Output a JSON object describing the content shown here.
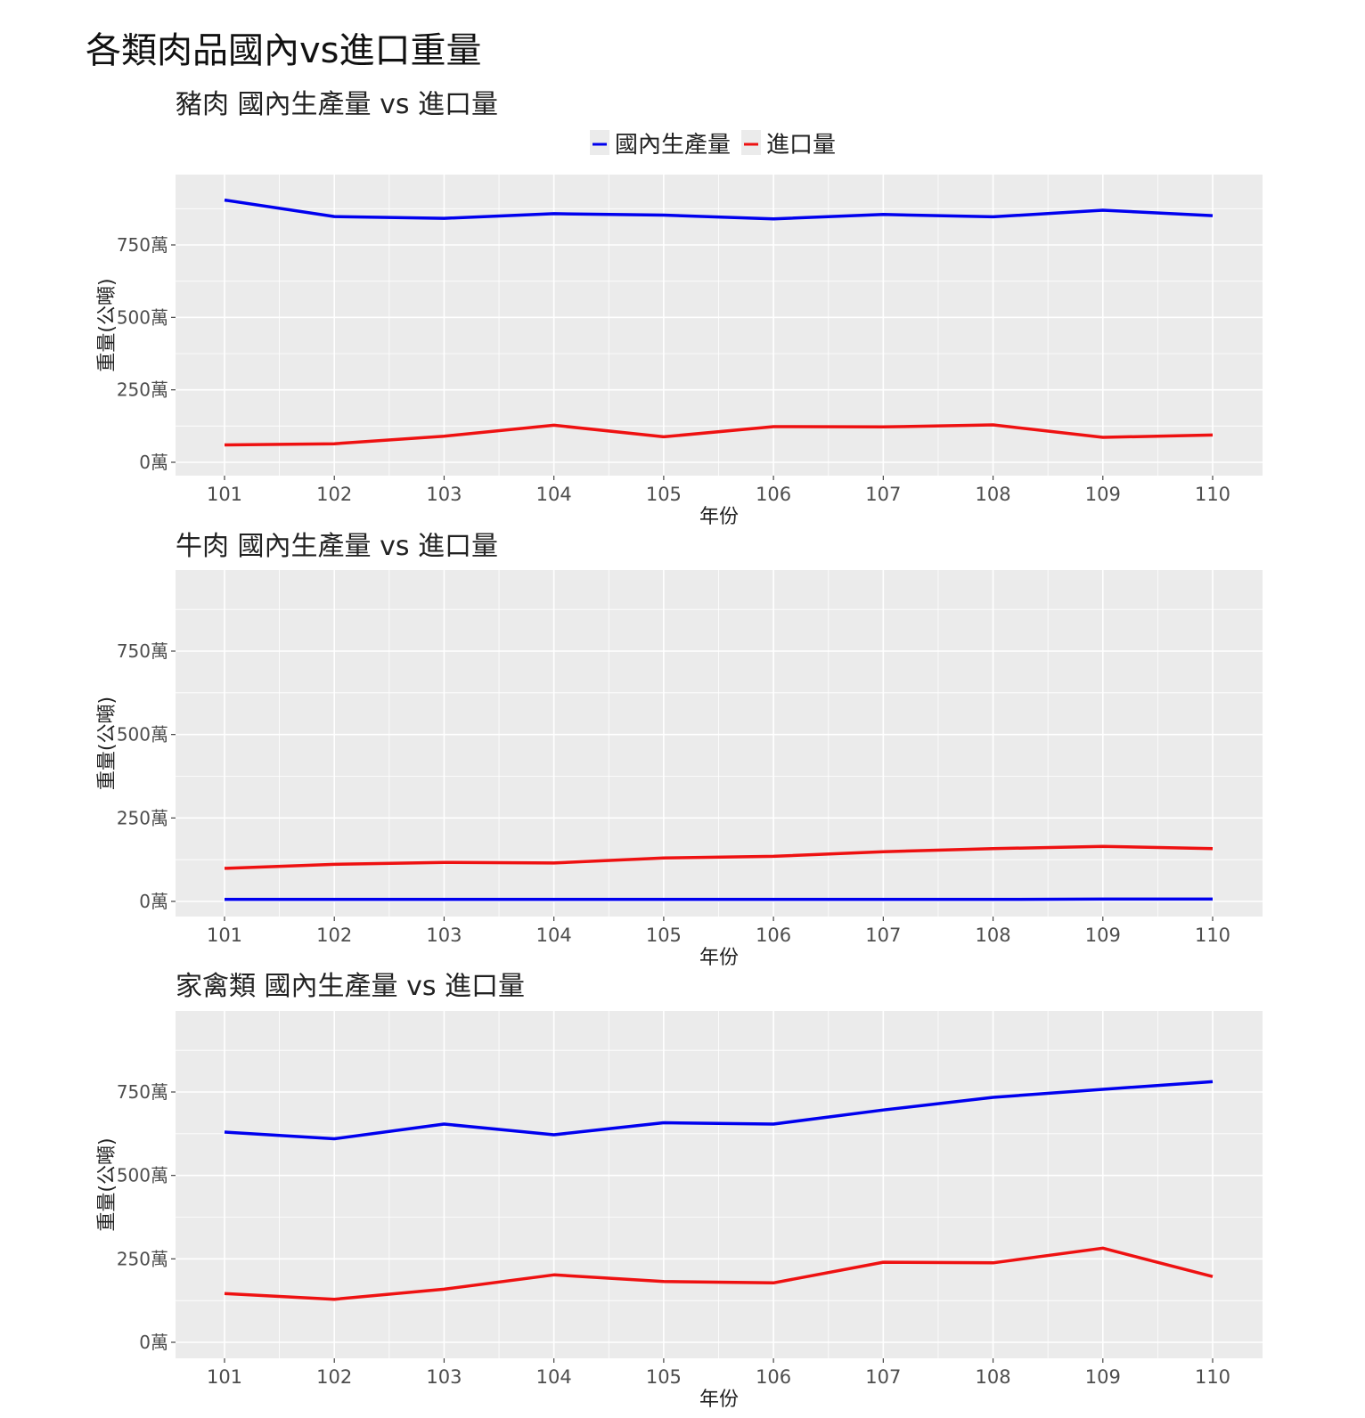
{
  "page": {
    "title": "各類肉品國內vs進口重量"
  },
  "legend": {
    "items": [
      {
        "label": "國內生產量",
        "color": "#0000ee"
      },
      {
        "label": "進口量",
        "color": "#ee1111"
      }
    ]
  },
  "chart_data": [
    {
      "type": "line",
      "title": "豬肉 國內生產量 vs 進口量",
      "xlabel": "年份",
      "ylabel": "重量(公噸)",
      "categories": [
        "101",
        "102",
        "103",
        "104",
        "105",
        "106",
        "107",
        "108",
        "109",
        "110"
      ],
      "ylim": [
        0,
        1000
      ],
      "yticks": [
        0,
        250,
        500,
        750
      ],
      "ytick_labels": [
        "0萬",
        "250萬",
        "500萬",
        "750萬"
      ],
      "grid": true,
      "legend_position": "top",
      "series": [
        {
          "name": "國內生產量",
          "color": "#0000ee",
          "values": [
            905,
            848,
            842,
            858,
            853,
            840,
            855,
            847,
            870,
            851
          ]
        },
        {
          "name": "進口量",
          "color": "#ee1111",
          "values": [
            60,
            64,
            90,
            128,
            88,
            123,
            122,
            129,
            86,
            94
          ]
        }
      ]
    },
    {
      "type": "line",
      "title": "牛肉 國內生產量 vs 進口量",
      "xlabel": "年份",
      "ylabel": "重量(公噸)",
      "categories": [
        "101",
        "102",
        "103",
        "104",
        "105",
        "106",
        "107",
        "108",
        "109",
        "110"
      ],
      "ylim": [
        0,
        1000
      ],
      "yticks": [
        0,
        250,
        500,
        750
      ],
      "ytick_labels": [
        "0萬",
        "250萬",
        "500萬",
        "750萬"
      ],
      "grid": true,
      "series": [
        {
          "name": "國內生產量",
          "color": "#0000ee",
          "values": [
            6,
            6,
            6,
            6,
            6,
            6,
            6,
            6,
            7,
            7
          ]
        },
        {
          "name": "進口量",
          "color": "#ee1111",
          "values": [
            99,
            111,
            117,
            115,
            130,
            135,
            149,
            158,
            165,
            158
          ]
        }
      ]
    },
    {
      "type": "line",
      "title": "家禽類 國內生產量 vs 進口量",
      "xlabel": "年份",
      "ylabel": "重量(公噸)",
      "categories": [
        "101",
        "102",
        "103",
        "104",
        "105",
        "106",
        "107",
        "108",
        "109",
        "110"
      ],
      "ylim": [
        0,
        1000
      ],
      "yticks": [
        0,
        250,
        500,
        750
      ],
      "ytick_labels": [
        "0萬",
        "250萬",
        "500萬",
        "750萬"
      ],
      "grid": true,
      "series": [
        {
          "name": "國內生產量",
          "color": "#0000ee",
          "values": [
            630,
            610,
            654,
            622,
            658,
            654,
            696,
            734,
            758,
            781
          ]
        },
        {
          "name": "進口量",
          "color": "#ee1111",
          "values": [
            146,
            129,
            159,
            202,
            182,
            178,
            240,
            238,
            282,
            197
          ]
        }
      ]
    }
  ]
}
